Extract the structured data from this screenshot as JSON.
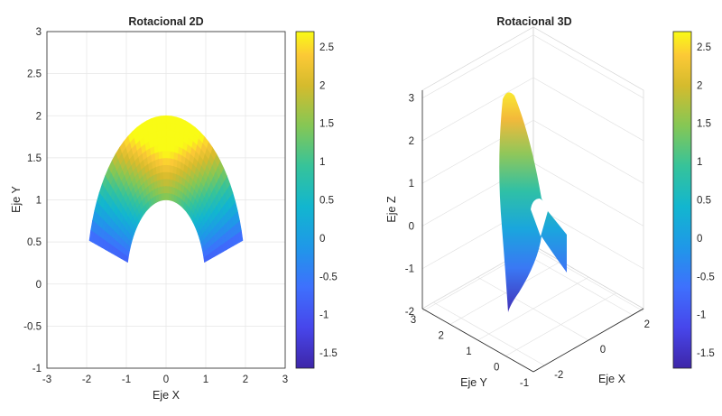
{
  "chart_data": [
    {
      "type": "heatmap",
      "title": "Rotacional 2D",
      "xlabel": "Eje X",
      "ylabel": "Eje Y",
      "xlim": [
        -3,
        3
      ],
      "ylim": [
        -1,
        3
      ],
      "xticks": [
        "-3",
        "-2",
        "-1",
        "0",
        "1",
        "2",
        "3"
      ],
      "yticks": [
        "-1",
        "-0.5",
        "0",
        "0.5",
        "1",
        "1.5",
        "2",
        "2.5",
        "3"
      ],
      "grid": true,
      "region": {
        "shape": "annular sector",
        "r_inner": 1,
        "r_outer": 2,
        "theta_min_deg": 15,
        "theta_max_deg": 165,
        "y_offset": 0
      },
      "color_range": [
        -1.7,
        2.7
      ],
      "colormap": "parula",
      "colorbar": {
        "ticks": [
          "2.5",
          "2",
          "1.5",
          "1",
          "0.5",
          "0",
          "-0.5",
          "-1",
          "-1.5"
        ],
        "range": [
          -1.7,
          2.7
        ]
      }
    },
    {
      "type": "surface",
      "title": "Rotacional 3D",
      "xlabel": "Eje X",
      "ylabel": "Eje Y",
      "zlabel": "Eje Z",
      "xticks": [
        "-2",
        "0",
        "2"
      ],
      "yticks": [
        "-1",
        "0",
        "1",
        "2",
        "3"
      ],
      "zticks": [
        "-2",
        "-1",
        "0",
        "1",
        "2",
        "3"
      ],
      "z_range": [
        -2,
        3.1
      ],
      "grid": true,
      "colormap": "parula",
      "colorbar": {
        "ticks": [
          "2.5",
          "2",
          "1.5",
          "1",
          "0.5",
          "0",
          "-0.5",
          "-1",
          "-1.5"
        ],
        "range": [
          -1.7,
          2.7
        ]
      }
    }
  ]
}
